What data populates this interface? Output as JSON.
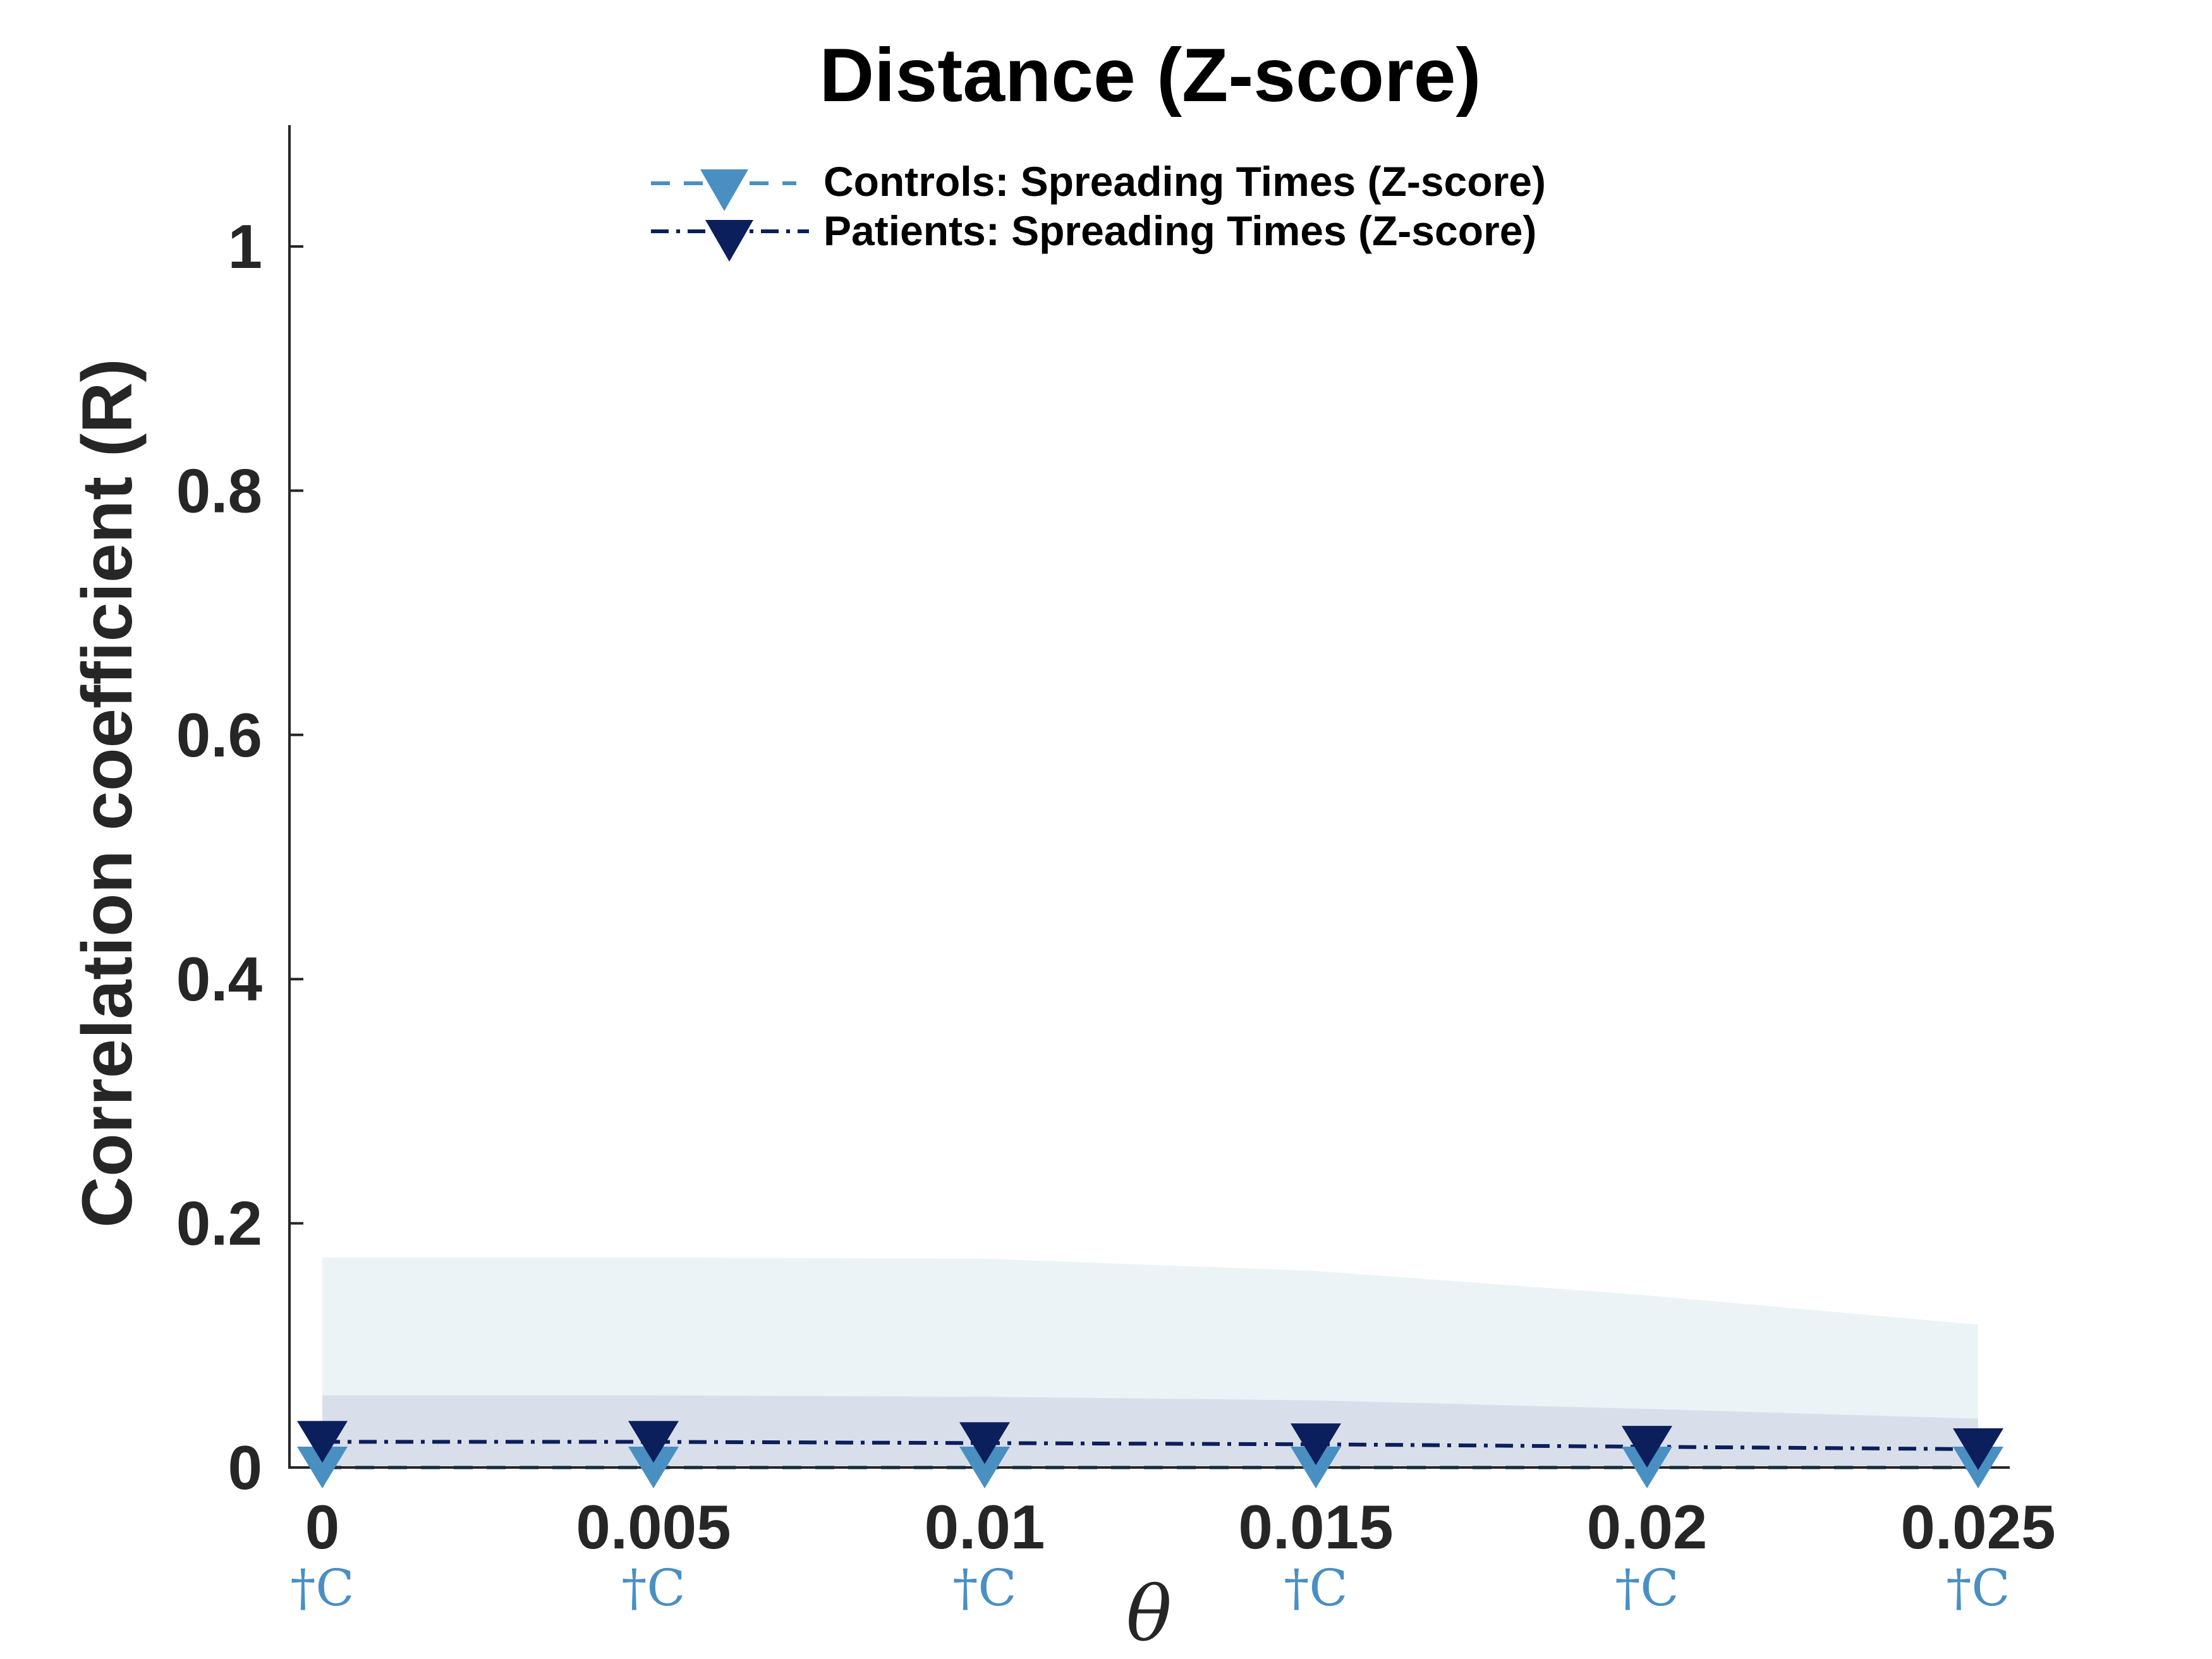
{
  "chart_data": {
    "type": "line",
    "title": "Distance (Z-score)",
    "xlabel": "θ",
    "ylabel": "Correlation coefficient (R)",
    "xlim": [
      0,
      0.025
    ],
    "ylim": [
      0,
      1.1
    ],
    "x": [
      0,
      0.005,
      0.01,
      0.015,
      0.02,
      0.025
    ],
    "x_tick_labels": [
      "0",
      "0.005",
      "0.01",
      "0.015",
      "0.02",
      "0.025"
    ],
    "y_ticks": [
      0,
      0.2,
      0.4,
      0.6,
      0.8,
      1
    ],
    "y_tick_labels": [
      "0",
      "0.2",
      "0.4",
      "0.6",
      "0.8",
      "1"
    ],
    "grid": false,
    "legend_position": "top-center",
    "series": [
      {
        "name": "Controls: Spreading Times (Z-score)",
        "values": [
          0.0,
          0.0,
          0.0,
          0.0,
          0.0,
          0.0
        ],
        "color": "#4a8fc2",
        "line_style": "dashed",
        "marker": "down-triangle",
        "band_upper": [
          0.172,
          0.172,
          0.171,
          0.161,
          0.141,
          0.117
        ],
        "band_color": "#ebf3f6"
      },
      {
        "name": "Patients: Spreading Times (Z-score)",
        "values": [
          0.021,
          0.021,
          0.02,
          0.019,
          0.017,
          0.015
        ],
        "color": "#0b1f5c",
        "line_style": "dash-dot",
        "marker": "down-triangle",
        "band_upper": [
          0.059,
          0.059,
          0.058,
          0.055,
          0.048,
          0.04
        ],
        "band_color": "#d9dfea"
      }
    ],
    "annotations": {
      "labels": [
        "†C",
        "†C",
        "†C",
        "†C",
        "†C",
        "†C"
      ],
      "color": "#4a8fc2"
    }
  }
}
